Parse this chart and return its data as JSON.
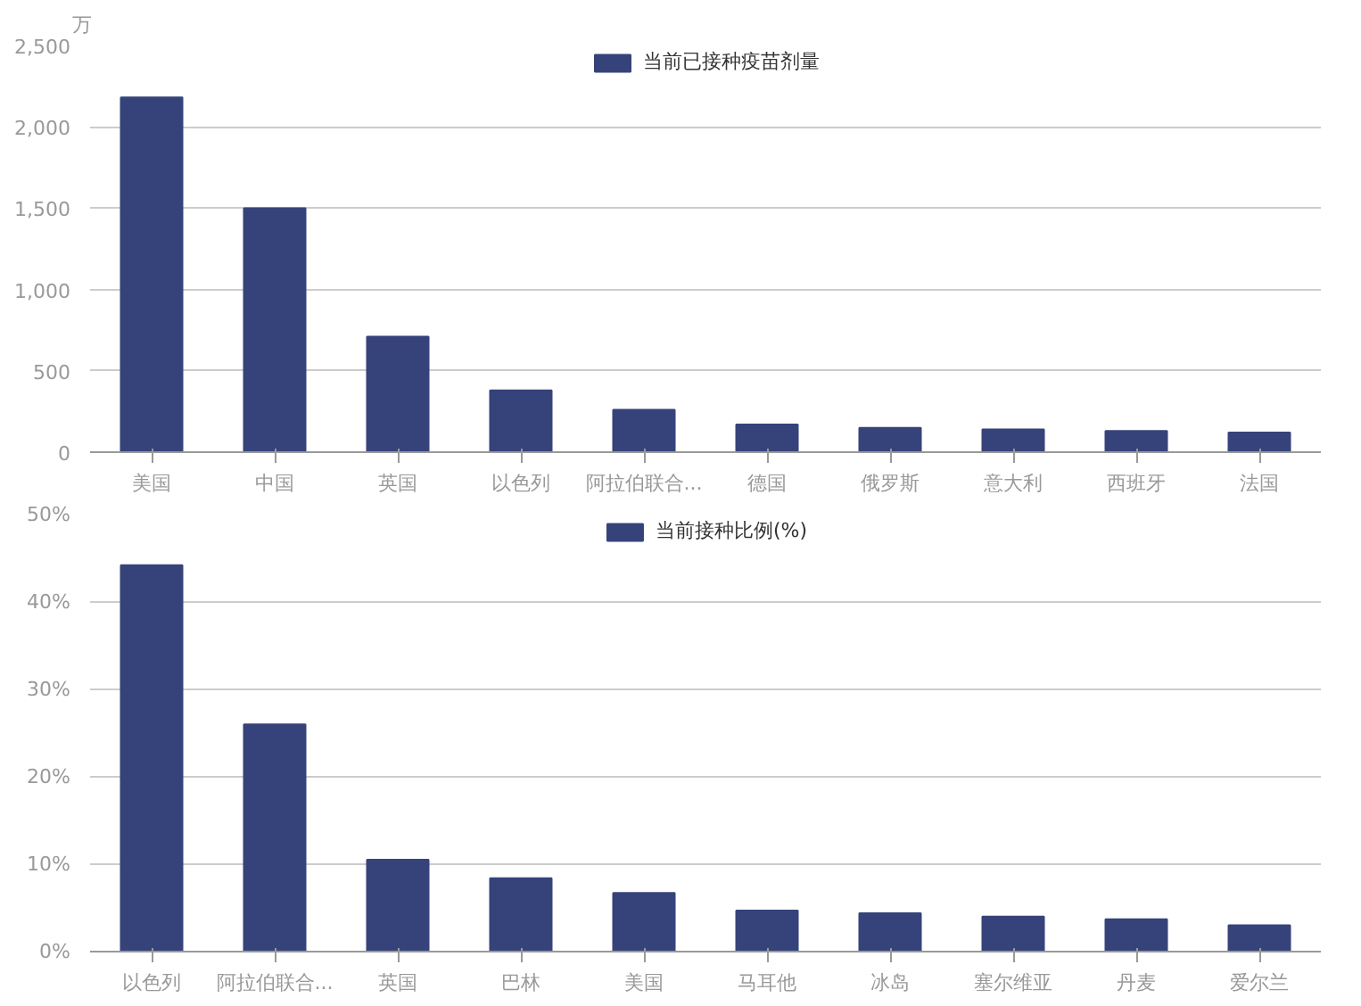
{
  "chart_data": [
    {
      "type": "bar",
      "ylabel": "万",
      "categories": [
        "美国",
        "中国",
        "英国",
        "以色列",
        "阿拉伯联合...",
        "德国",
        "俄罗斯",
        "意大利",
        "西班牙",
        "法国"
      ],
      "series": [
        {
          "name": "当前已接种疫苗剂量",
          "color": "#36437a",
          "values": [
            2180,
            1500,
            710,
            380,
            260,
            170,
            150,
            140,
            130,
            120
          ]
        }
      ],
      "ylim": [
        0,
        2500
      ],
      "yticks": [
        0,
        {
          "value": 500,
          "label": "500"
        },
        {
          "value": 1000,
          "label": "1,000"
        },
        {
          "value": 1500,
          "label": "1,500"
        },
        {
          "value": 2000,
          "label": "2,000"
        },
        {
          "value": 2500,
          "label": "2,500"
        }
      ],
      "grid": "y",
      "legend": "top"
    },
    {
      "type": "bar",
      "categories": [
        "以色列",
        "阿拉伯联合...",
        "英国",
        "巴林",
        "美国",
        "马耳他",
        "冰岛",
        "塞尔维亚",
        "丹麦",
        "爱尔兰"
      ],
      "series": [
        {
          "name": "当前接种比例(%)",
          "color": "#36437a",
          "values": [
            44.2,
            26.0,
            10.5,
            8.4,
            6.7,
            4.7,
            4.4,
            4.0,
            3.7,
            3.0
          ]
        }
      ],
      "ylim": [
        0,
        50
      ],
      "yticks": [
        {
          "value": 0,
          "label": "0%"
        },
        {
          "value": 10,
          "label": "10%"
        },
        {
          "value": 20,
          "label": "20%"
        },
        {
          "value": 30,
          "label": "30%"
        },
        {
          "value": 40,
          "label": "40%"
        },
        {
          "value": 50,
          "label": "50%"
        }
      ],
      "grid": "y",
      "legend": "top"
    }
  ]
}
